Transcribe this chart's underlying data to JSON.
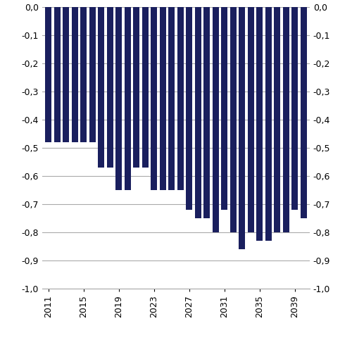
{
  "years": [
    2011,
    2012,
    2013,
    2014,
    2015,
    2016,
    2017,
    2018,
    2019,
    2020,
    2021,
    2022,
    2023,
    2024,
    2025,
    2026,
    2027,
    2028,
    2029,
    2030,
    2031,
    2032,
    2033,
    2034,
    2035,
    2036,
    2037,
    2038,
    2039,
    2040
  ],
  "values": [
    -0.48,
    -0.48,
    -0.48,
    -0.48,
    -0.48,
    -0.48,
    -0.57,
    -0.57,
    -0.65,
    -0.65,
    -0.57,
    -0.57,
    -0.65,
    -0.65,
    -0.65,
    -0.65,
    -0.72,
    -0.75,
    -0.75,
    -0.8,
    -0.72,
    -0.8,
    -0.86,
    -0.8,
    -0.83,
    -0.83,
    -0.8,
    -0.8,
    -0.72,
    -0.75
  ],
  "bar_color": "#1a1f5e",
  "ylim": [
    -1.0,
    0.0
  ],
  "yticks": [
    0.0,
    -0.1,
    -0.2,
    -0.3,
    -0.4,
    -0.5,
    -0.6,
    -0.7,
    -0.8,
    -0.9,
    -1.0
  ],
  "xticks": [
    2011,
    2015,
    2019,
    2023,
    2027,
    2031,
    2035,
    2039
  ],
  "grid_color": "#aaaaaa",
  "background_color": "#ffffff",
  "bar_width": 0.72,
  "xlim_left": 2010.3,
  "xlim_right": 2040.7
}
